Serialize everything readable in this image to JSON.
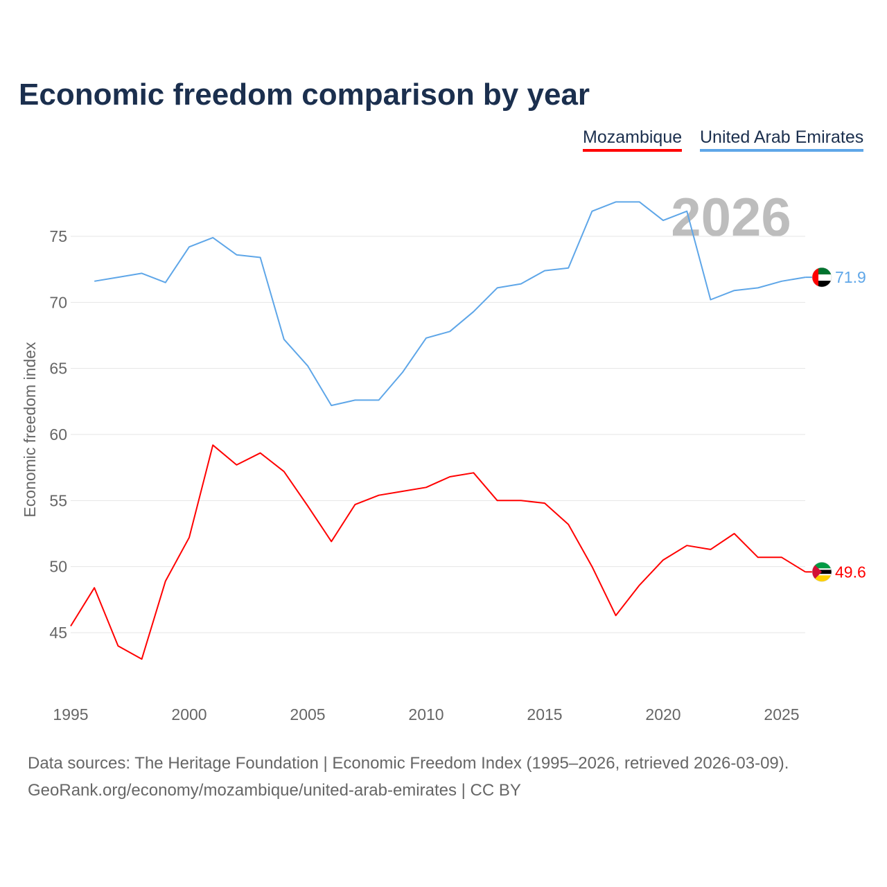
{
  "chart_data": {
    "type": "line",
    "title": "Economic freedom comparison by year",
    "xlabel": "",
    "ylabel": "Economic freedom index",
    "xlim": [
      1995,
      2026
    ],
    "ylim": [
      40.5,
      80
    ],
    "xticks": [
      1995,
      2000,
      2005,
      2010,
      2015,
      2020,
      2025
    ],
    "yticks": [
      45,
      50,
      55,
      60,
      65,
      70,
      75
    ],
    "grid": true,
    "legend_placement": "top-right",
    "year_watermark": "2026",
    "series": [
      {
        "name": "Mozambique",
        "color": "#ff0000",
        "end_label": "49.6",
        "x": [
          1995,
          1996,
          1997,
          1998,
          1999,
          2000,
          2001,
          2002,
          2003,
          2004,
          2005,
          2006,
          2007,
          2008,
          2009,
          2010,
          2011,
          2012,
          2013,
          2014,
          2015,
          2016,
          2017,
          2018,
          2019,
          2020,
          2021,
          2022,
          2023,
          2024,
          2025,
          2026
        ],
        "values": [
          45.5,
          48.4,
          44.0,
          43.0,
          48.9,
          52.2,
          59.2,
          57.7,
          58.6,
          57.2,
          54.6,
          51.9,
          54.7,
          55.4,
          55.7,
          56.0,
          56.8,
          57.1,
          55.0,
          55.0,
          54.8,
          53.2,
          50.0,
          46.3,
          48.6,
          50.5,
          51.6,
          51.3,
          52.5,
          50.7,
          50.7,
          49.6
        ]
      },
      {
        "name": "United Arab Emirates",
        "color": "#5ea6e8",
        "end_label": "71.9",
        "x": [
          1996,
          1997,
          1998,
          1999,
          2000,
          2001,
          2002,
          2003,
          2004,
          2005,
          2006,
          2007,
          2008,
          2009,
          2010,
          2011,
          2012,
          2013,
          2014,
          2015,
          2016,
          2017,
          2018,
          2019,
          2020,
          2021,
          2022,
          2023,
          2024,
          2025,
          2026
        ],
        "values": [
          71.6,
          71.9,
          72.2,
          71.5,
          74.2,
          74.9,
          73.6,
          73.4,
          67.2,
          65.2,
          62.2,
          62.6,
          62.6,
          64.7,
          67.3,
          67.8,
          69.3,
          71.1,
          71.4,
          72.4,
          72.6,
          76.9,
          77.6,
          77.6,
          76.2,
          76.9,
          70.2,
          70.9,
          71.1,
          71.6,
          71.9
        ]
      }
    ]
  },
  "footer": {
    "line1": "Data sources: The Heritage Foundation | Economic Freedom Index (1995–2026, retrieved 2026-03-09).",
    "line2": "GeoRank.org/economy/mozambique/united-arab-emirates | CC BY"
  }
}
